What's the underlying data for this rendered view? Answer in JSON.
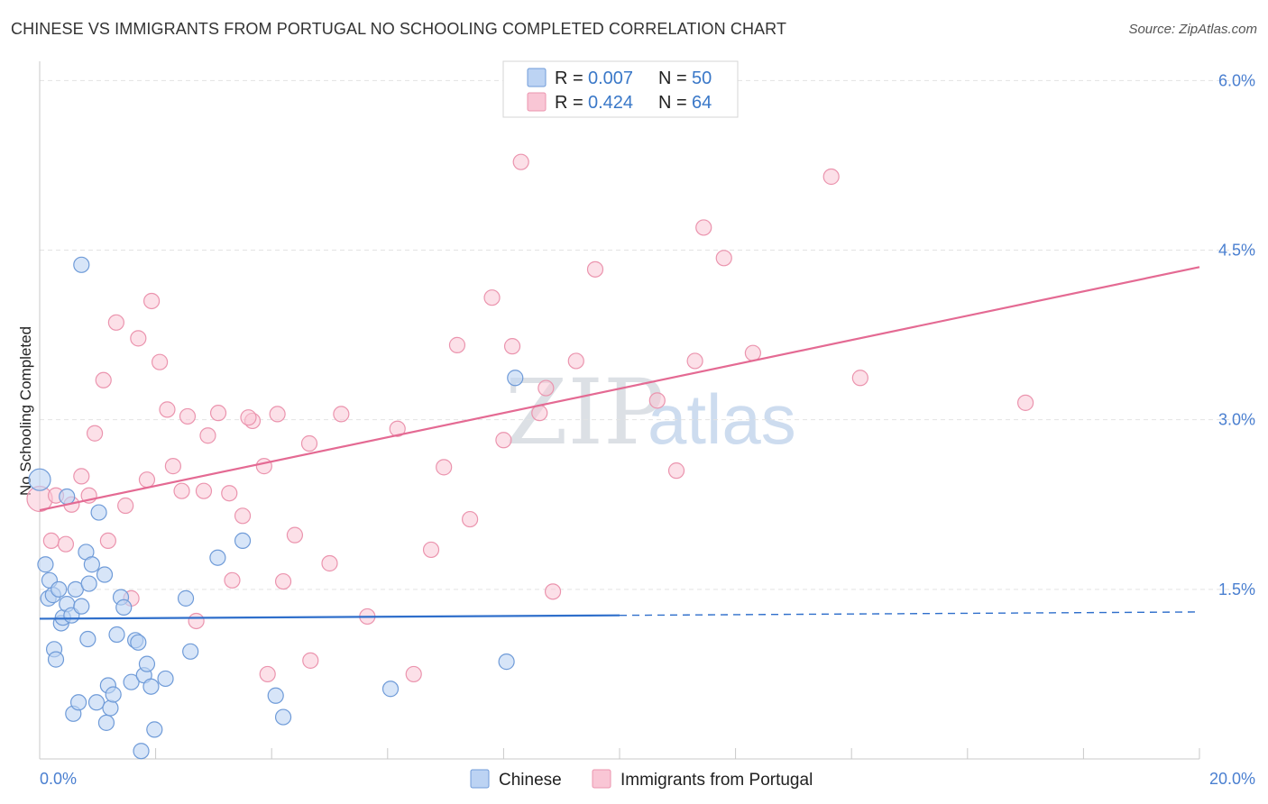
{
  "title": "CHINESE VS IMMIGRANTS FROM PORTUGAL NO SCHOOLING COMPLETED CORRELATION CHART",
  "source": "Source: ZipAtlas.com",
  "colors": {
    "chinese_fill": "#bcd3f3",
    "chinese_stroke": "#6f9bd8",
    "chinese_line": "#2f6fcb",
    "portugal_fill": "#f9c6d5",
    "portugal_stroke": "#eb94ae",
    "portugal_line": "#e46a93",
    "grid": "#e3e3e3",
    "tick_text": "#4a7fd0"
  },
  "legend": {
    "r_label": "R =",
    "n_label": "N =",
    "chinese_r": "0.007",
    "chinese_n": "50",
    "portugal_r": "0.424",
    "portugal_n": "64"
  },
  "watermark": {
    "zip": "ZIP",
    "atlas": "atlas"
  },
  "chart_data": {
    "type": "scatter",
    "title": "CHINESE VS IMMIGRANTS FROM PORTUGAL NO SCHOOLING COMPLETED CORRELATION CHART",
    "xlabel": "",
    "ylabel": "No Schooling Completed",
    "xlim": [
      0,
      20
    ],
    "ylim": [
      0,
      6.25
    ],
    "x_tick_labels": [
      "0.0%",
      "20.0%"
    ],
    "y_ticks": [
      1.5,
      3.0,
      4.5,
      6.0
    ],
    "y_tick_labels": [
      "1.5%",
      "3.0%",
      "4.5%",
      "6.0%"
    ],
    "grid": true,
    "legend_position": "top-center",
    "series": [
      {
        "name": "Chinese",
        "r": 0.007,
        "n": 50,
        "trend": {
          "x": [
            0,
            10,
            20
          ],
          "y": [
            1.24,
            1.27,
            1.3
          ],
          "solid_until": 10
        },
        "points": [
          [
            0.0,
            2.47
          ],
          [
            0.1,
            1.72
          ],
          [
            0.15,
            1.42
          ],
          [
            0.17,
            1.58
          ],
          [
            0.23,
            1.45
          ],
          [
            0.25,
            0.97
          ],
          [
            0.28,
            0.88
          ],
          [
            0.33,
            1.5
          ],
          [
            0.37,
            1.2
          ],
          [
            0.4,
            1.25
          ],
          [
            0.47,
            2.32
          ],
          [
            0.47,
            1.37
          ],
          [
            0.55,
            1.27
          ],
          [
            0.58,
            0.4
          ],
          [
            0.62,
            1.5
          ],
          [
            0.67,
            0.5
          ],
          [
            0.72,
            4.37
          ],
          [
            0.72,
            1.35
          ],
          [
            0.8,
            1.83
          ],
          [
            0.83,
            1.06
          ],
          [
            0.85,
            1.55
          ],
          [
            0.9,
            1.72
          ],
          [
            0.98,
            0.5
          ],
          [
            1.02,
            2.18
          ],
          [
            1.12,
            1.63
          ],
          [
            1.15,
            0.32
          ],
          [
            1.18,
            0.65
          ],
          [
            1.22,
            0.45
          ],
          [
            1.27,
            0.57
          ],
          [
            1.33,
            1.1
          ],
          [
            1.4,
            1.43
          ],
          [
            1.45,
            1.34
          ],
          [
            1.58,
            0.68
          ],
          [
            1.65,
            1.05
          ],
          [
            1.7,
            1.03
          ],
          [
            1.75,
            0.07
          ],
          [
            1.8,
            0.74
          ],
          [
            1.85,
            0.84
          ],
          [
            1.92,
            0.64
          ],
          [
            1.98,
            0.26
          ],
          [
            2.17,
            0.71
          ],
          [
            2.52,
            1.42
          ],
          [
            2.6,
            0.95
          ],
          [
            3.07,
            1.78
          ],
          [
            3.5,
            1.93
          ],
          [
            4.07,
            0.56
          ],
          [
            4.2,
            0.37
          ],
          [
            6.05,
            0.62
          ],
          [
            8.05,
            0.86
          ],
          [
            8.2,
            3.37
          ]
        ]
      },
      {
        "name": "Immigrants from Portugal",
        "r": 0.424,
        "n": 64,
        "trend": {
          "x": [
            0,
            20
          ],
          "y": [
            2.2,
            4.35
          ]
        },
        "points": [
          [
            0.0,
            2.3
          ],
          [
            0.2,
            1.93
          ],
          [
            0.28,
            2.33
          ],
          [
            0.45,
            1.9
          ],
          [
            0.55,
            2.25
          ],
          [
            0.72,
            2.5
          ],
          [
            0.85,
            2.33
          ],
          [
            0.95,
            2.88
          ],
          [
            1.1,
            3.35
          ],
          [
            1.18,
            1.93
          ],
          [
            1.32,
            3.86
          ],
          [
            1.48,
            2.24
          ],
          [
            1.58,
            1.42
          ],
          [
            1.7,
            3.72
          ],
          [
            1.85,
            2.47
          ],
          [
            1.93,
            4.05
          ],
          [
            2.07,
            3.51
          ],
          [
            2.2,
            3.09
          ],
          [
            2.3,
            2.59
          ],
          [
            2.45,
            2.37
          ],
          [
            2.55,
            3.03
          ],
          [
            2.7,
            1.22
          ],
          [
            2.83,
            2.37
          ],
          [
            2.9,
            2.86
          ],
          [
            3.08,
            3.06
          ],
          [
            3.27,
            2.35
          ],
          [
            3.32,
            1.58
          ],
          [
            3.5,
            2.15
          ],
          [
            3.67,
            2.99
          ],
          [
            3.6,
            3.02
          ],
          [
            3.87,
            2.59
          ],
          [
            3.93,
            0.75
          ],
          [
            4.1,
            3.05
          ],
          [
            4.2,
            1.57
          ],
          [
            4.4,
            1.98
          ],
          [
            4.65,
            2.79
          ],
          [
            4.67,
            0.87
          ],
          [
            5.0,
            1.73
          ],
          [
            5.2,
            3.05
          ],
          [
            5.65,
            1.26
          ],
          [
            6.17,
            2.92
          ],
          [
            6.45,
            0.75
          ],
          [
            6.75,
            1.85
          ],
          [
            6.97,
            2.58
          ],
          [
            7.2,
            3.66
          ],
          [
            7.42,
            2.12
          ],
          [
            7.8,
            4.08
          ],
          [
            8.0,
            2.82
          ],
          [
            8.15,
            3.65
          ],
          [
            8.3,
            5.28
          ],
          [
            8.62,
            3.06
          ],
          [
            8.73,
            3.28
          ],
          [
            8.85,
            1.48
          ],
          [
            9.25,
            3.52
          ],
          [
            9.58,
            4.33
          ],
          [
            10.65,
            3.17
          ],
          [
            10.98,
            2.55
          ],
          [
            11.3,
            3.52
          ],
          [
            11.45,
            4.7
          ],
          [
            11.8,
            4.43
          ],
          [
            12.3,
            3.59
          ],
          [
            13.65,
            5.15
          ],
          [
            14.15,
            3.37
          ],
          [
            17.0,
            3.15
          ]
        ]
      }
    ]
  }
}
